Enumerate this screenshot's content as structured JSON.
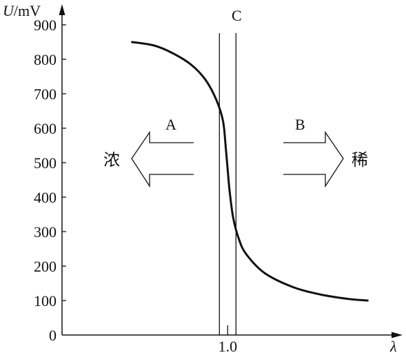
{
  "chart_data": {
    "type": "line",
    "y_axis": {
      "label_var": "U",
      "label_unit": "/mV",
      "range": [
        0,
        960
      ],
      "ticks": [
        {
          "value": 0,
          "label": "0"
        },
        {
          "value": 100,
          "label": "100"
        },
        {
          "value": 200,
          "label": "200"
        },
        {
          "value": 300,
          "label": "300"
        },
        {
          "value": 400,
          "label": "400"
        },
        {
          "value": 500,
          "label": "500"
        },
        {
          "value": 600,
          "label": "600"
        },
        {
          "value": 700,
          "label": "700"
        },
        {
          "value": 800,
          "label": "800"
        },
        {
          "value": 900,
          "label": "900"
        }
      ]
    },
    "x_axis": {
      "label": "λ",
      "range": [
        0.1,
        1.95
      ],
      "ticks": [
        {
          "value": 1.0,
          "label": "1.0"
        }
      ]
    },
    "series": [
      {
        "x": [
          0.48,
          0.6,
          0.7,
          0.8,
          0.88,
          0.94,
          0.975,
          0.99,
          1.0,
          1.01,
          1.03,
          1.06,
          1.1,
          1.2,
          1.35,
          1.5,
          1.65,
          1.76
        ],
        "y": [
          850,
          840,
          818,
          785,
          740,
          680,
          620,
          540,
          480,
          420,
          340,
          280,
          235,
          180,
          140,
          118,
          105,
          100
        ]
      }
    ],
    "vertical_lines": [
      {
        "x": 0.955
      },
      {
        "x": 1.045
      }
    ],
    "grid": false,
    "annotations": {
      "region_c": "C",
      "left_letter": "A",
      "left_word": "浓",
      "right_letter": "B",
      "right_word": "稀"
    }
  }
}
